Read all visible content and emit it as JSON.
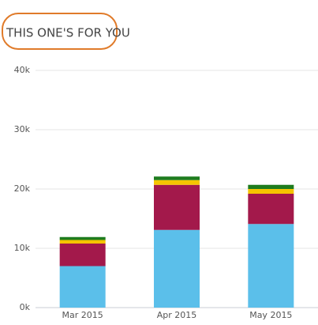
{
  "chart_data": {
    "type": "stacked-bar",
    "title": "THIS ONE'S FOR YOU",
    "categories": [
      "Mar 2015",
      "Apr 2015",
      "May 2015"
    ],
    "series": [
      {
        "color": "#5bbfea",
        "values": [
          7000,
          13100,
          14100
        ]
      },
      {
        "color": "#a3194b",
        "values": [
          3800,
          7600,
          5100
        ]
      },
      {
        "color": "#f5c400",
        "values": [
          600,
          800,
          800
        ]
      },
      {
        "color": "#1e7c1e",
        "values": [
          500,
          600,
          700
        ]
      }
    ],
    "ylim": [
      0,
      40000
    ],
    "yticks": [
      {
        "value": 0,
        "label": "0k"
      },
      {
        "value": 10000,
        "label": "10k"
      },
      {
        "value": 20000,
        "label": "20k"
      },
      {
        "value": 30000,
        "label": "30k"
      },
      {
        "value": 40000,
        "label": "40k"
      }
    ],
    "grid": true
  }
}
